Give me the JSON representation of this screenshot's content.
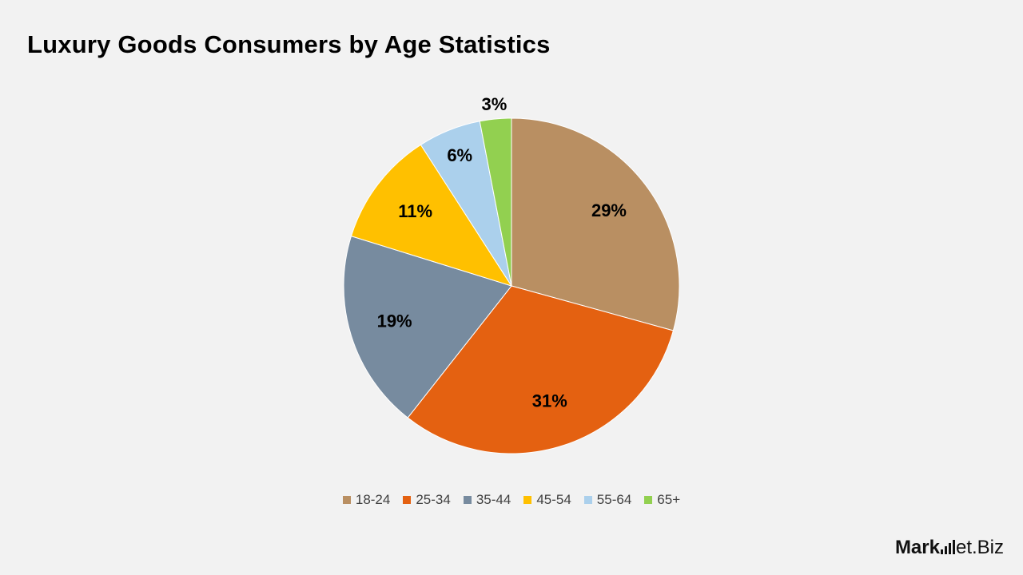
{
  "title": "Luxury Goods Consumers by Age Statistics",
  "chart_data": {
    "type": "pie",
    "title": "Luxury Goods Consumers by Age Statistics",
    "legend_position": "bottom",
    "slices": [
      {
        "label": "18-24",
        "value": 29,
        "display": "29%",
        "color": "#b98f62"
      },
      {
        "label": "25-34",
        "value": 31,
        "display": "31%",
        "color": "#e46111"
      },
      {
        "label": "35-44",
        "value": 19,
        "display": "19%",
        "color": "#778b9f"
      },
      {
        "label": "45-54",
        "value": 11,
        "display": "11%",
        "color": "#ffc000"
      },
      {
        "label": "55-64",
        "value": 6,
        "display": "6%",
        "color": "#abd0ec"
      },
      {
        "label": "65+",
        "value": 3,
        "display": "3%",
        "color": "#92d050"
      }
    ]
  },
  "logo": {
    "part1": "Mark",
    "part2": "et.Biz"
  }
}
